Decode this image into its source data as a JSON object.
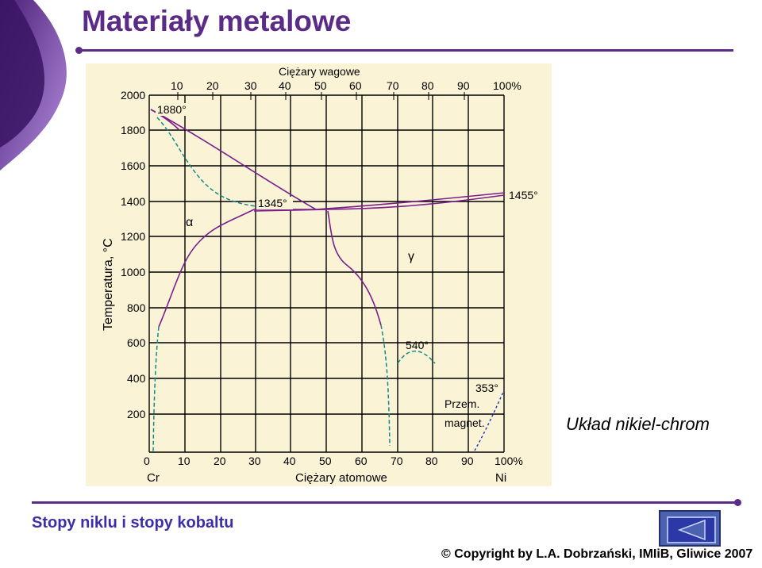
{
  "slide": {
    "title": "Materiały metalowe",
    "caption": "Układ nikiel-chrom",
    "footer_left": "Stopy niklu i stopy kobaltu",
    "copyright": "© Copyright by L.A. Dobrzański, IMIiB, Gliwice 2007"
  },
  "diagram": {
    "top_axis_title": "Ciężary wagowe",
    "top_ticks": [
      "10",
      "20",
      "30",
      "40",
      "50",
      "60",
      "70",
      "80",
      "90",
      "100%"
    ],
    "bottom_axis_title": "Ciężary atomowe",
    "bottom_ticks": [
      "0",
      "10",
      "20",
      "30",
      "40",
      "50",
      "60",
      "70",
      "80",
      "90",
      "100%"
    ],
    "left_end_label": "Cr",
    "right_end_label": "Ni",
    "y_axis_title": "Temperatura, °C",
    "y_ticks": [
      "2000",
      "1800",
      "1600",
      "1400",
      "1200",
      "1000",
      "800",
      "600",
      "400",
      "200"
    ],
    "labels": {
      "t1880": "1880°",
      "t1345": "1345°",
      "t1455": "1455°",
      "t540": "540°",
      "t353": "353°",
      "alpha": "α",
      "gamma": "γ",
      "przem": "Przem.",
      "magnet": "magnet."
    },
    "colors": {
      "solid_line": "#7a1f8c",
      "dashed_line": "#128a8a",
      "magnetic_line": "#2a3fbf"
    }
  },
  "icons": {
    "nav": "back-arrow-icon"
  }
}
